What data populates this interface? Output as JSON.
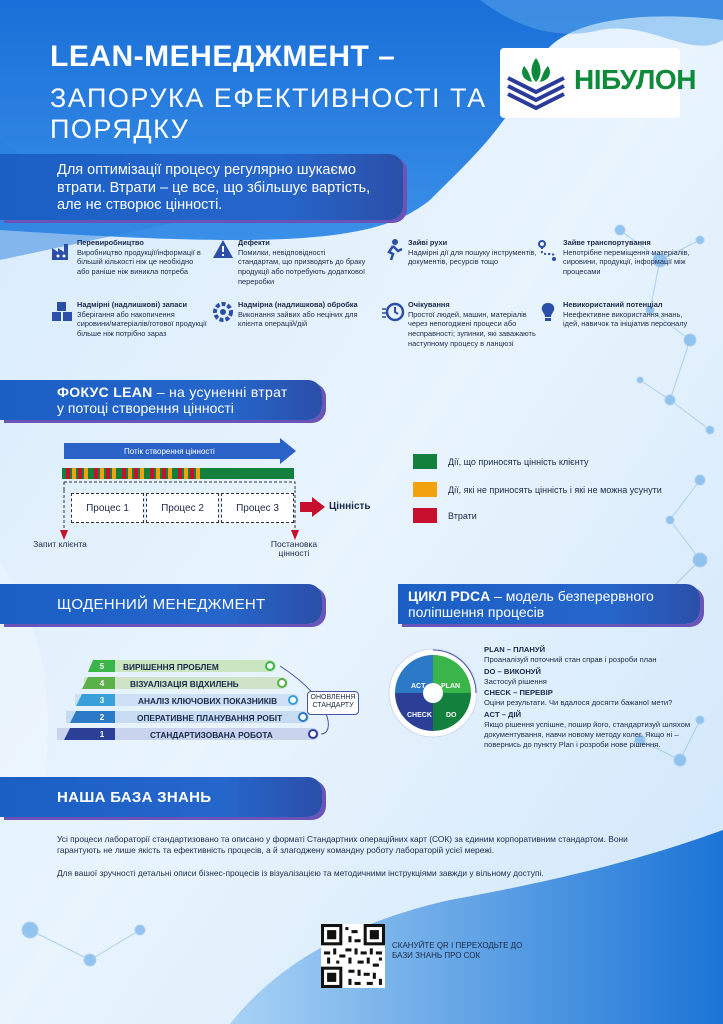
{
  "header": {
    "title": "LEAN-МЕНЕДЖМЕНТ –",
    "subtitle": "ЗАПОРУКА ЕФЕКТИВНОСТІ ТА ПОРЯДКУ",
    "logo_text": "НІБУЛОН"
  },
  "intro": "Для оптимізації процесу регулярно шукаємо втрати. Втрати – це все, що збільшує вартість, але не створює цінності.",
  "wastes": [
    {
      "title": "Перевиробництво",
      "text": "Виробництво продукції/інформації в більшій кількості ніж це необхідно або раніше ніж виникла потреба",
      "icon": "factory-icon"
    },
    {
      "title": "Дефекти",
      "text": "Помилки, невідповідності стандартам, що призводять до браку продукції або потребують додаткової переробки",
      "icon": "defect-icon"
    },
    {
      "title": "Зайві рухи",
      "text": "Надмірні дії для пошуку інструментів, документів, ресурсів тощо",
      "icon": "motion-icon"
    },
    {
      "title": "Зайве транспортування",
      "text": "Непотрібне переміщення матеріалів, сировини, продукції, інформації між процесами",
      "icon": "route-icon"
    },
    {
      "title": "Надмірні (надлишкові) запаси",
      "text": "Зберігання або накопичення сировини/матеріалів/готової продукції більше ніж потрібно зараз",
      "icon": "boxes-icon"
    },
    {
      "title": "Надмірна (надлишкова) обробка",
      "text": "Виконання зайвих або неціних для клієнта операцій/дій",
      "icon": "processing-icon"
    },
    {
      "title": "Очікування",
      "text": "Простої людей, машин, матеріалів через непогоджені процеси або несправності; зупинки, які заважають наступному процесу в ланцюзі",
      "icon": "clock-icon"
    },
    {
      "title": "Невикористаний потенціал",
      "text": "Неефективне використання знань, ідей, навичок та ініціатив персоналу",
      "icon": "bulb-icon"
    }
  ],
  "focus": {
    "title_bold": "ФОКУС LEAN",
    "title_rest": " – на усуненні втрат",
    "title_line2": "у потоці створення цінності",
    "stream_label": "Потік створення цінності",
    "processes": [
      "Процес 1",
      "Процес 2",
      "Процес 3"
    ],
    "value": "Цінність",
    "client_request": "Запит клієнта",
    "delivery": "Постановка цінності",
    "legend": [
      {
        "color": "#13813d",
        "text": "Дії, що приносять цінність клієнту"
      },
      {
        "color": "#f2a20f",
        "text": "Дії, які не приносять цінність і які не можна усунути"
      },
      {
        "color": "#c8102e",
        "text": "Втрати"
      }
    ]
  },
  "daily": {
    "title": "ЩОДЕННИЙ МЕНЕДЖМЕНТ",
    "levels": [
      {
        "num": "5",
        "label": "ВИРІШЕННЯ ПРОБЛЕМ"
      },
      {
        "num": "4",
        "label": "ВІЗУАЛІЗАЦІЯ ВІДХИЛЕНЬ"
      },
      {
        "num": "3",
        "label": "АНАЛІЗ КЛЮЧОВИХ ПОКАЗНИКІВ"
      },
      {
        "num": "2",
        "label": "ОПЕРАТИВНЕ ПЛАНУВАННЯ РОБІТ"
      },
      {
        "num": "1",
        "label": "СТАНДАРТИЗОВАНА РОБОТА"
      }
    ],
    "standards": "ОНОВЛЕННЯ СТАНДАРТУ"
  },
  "pdca": {
    "title_bold": "ЦИКЛ PDCA",
    "title_rest": " – модель безперервного",
    "title_line2": "поліпшення процесів",
    "labels": {
      "act": "ACT",
      "plan": "PLAN",
      "check": "CHECK",
      "do": "DO"
    },
    "phases": [
      {
        "head": "PLAN – ПЛАНУЙ",
        "text": "Проаналізуй поточний стан справ і розроби план"
      },
      {
        "head": "DO – ВИКОНУЙ",
        "text": "Застосуй рішення"
      },
      {
        "head": "CHECK – ПЕРЕВІР",
        "text": "Оціни результати. Чи вдалося досягти бажаної мети?"
      },
      {
        "head": "ACT – ДІЙ",
        "text": "Якщо рішення успішне, пошир його, стандартизуй шляхом документування, навчи новому методу колег. Якщо ні – повернись до пункту Plan і розроби нове рішення."
      }
    ]
  },
  "knowledge": {
    "title": "НАША БАЗА ЗНАНЬ",
    "p1": "Усі процеси лабораторії стандартизовано та описано у форматі Стандартних операційних карт (СОК) за єдиним корпоративним стандартом. Вони гарантують не лише якість та ефективність процесів, а й злагоджену командну роботу лабораторій усієї мережі.",
    "p2": "Для вашої зручності детальні описи бізнес-процесів із візуалізацією та методичними інструкціями завжди у вільному доступі.",
    "qr_text": "СКАНУЙТЕ QR І ПЕРЕХОДЬТЕ ДО БАЗИ ЗНАНЬ ПРО СОК"
  }
}
